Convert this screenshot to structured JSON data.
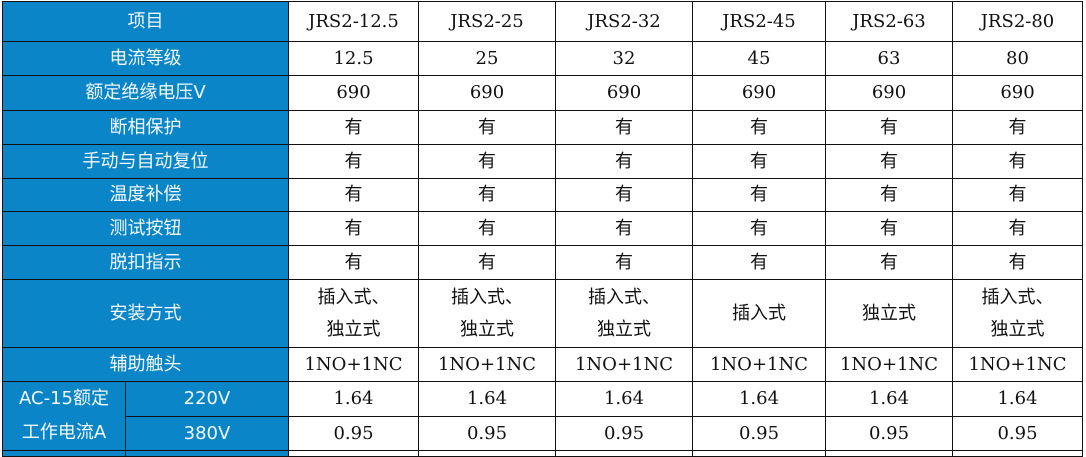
{
  "header": {
    "label": "项目",
    "models": [
      "JRS2-12.5",
      "JRS2-25",
      "JRS2-32",
      "JRS2-45",
      "JRS2-63",
      "JRS2-80"
    ]
  },
  "rows": [
    {
      "label": "电流等级",
      "values": [
        "12.5",
        "25",
        "32",
        "45",
        "63",
        "80"
      ]
    },
    {
      "label": "额定绝缘电压V",
      "values": [
        "690",
        "690",
        "690",
        "690",
        "690",
        "690"
      ]
    },
    {
      "label": "断相保护",
      "values": [
        "有",
        "有",
        "有",
        "有",
        "有",
        "有"
      ]
    },
    {
      "label": "手动与自动复位",
      "values": [
        "有",
        "有",
        "有",
        "有",
        "有",
        "有"
      ]
    },
    {
      "label": "温度补偿",
      "values": [
        "有",
        "有",
        "有",
        "有",
        "有",
        "有"
      ]
    },
    {
      "label": "测试按钮",
      "values": [
        "有",
        "有",
        "有",
        "有",
        "有",
        "有"
      ]
    },
    {
      "label": "脱扣指示",
      "values": [
        "有",
        "有",
        "有",
        "有",
        "有",
        "有"
      ]
    },
    {
      "label": "安装方式",
      "values": [
        "插入式、\n独立式",
        "插入式、\n独立式",
        "插入式、\n独立式",
        "插入式",
        "独立式",
        "插入式、\n独立式"
      ]
    },
    {
      "label": "辅助触头",
      "values": [
        "1NO+1NC",
        "1NO+1NC",
        "1NO+1NC",
        "1NO+1NC",
        "1NO+1NC",
        "1NO+1NC"
      ]
    }
  ],
  "ac15": {
    "label_line1": "AC-15额定",
    "label_line2": "工作电流A",
    "sub": [
      {
        "label": "220V",
        "values": [
          "1.64",
          "1.64",
          "1.64",
          "1.64",
          "1.64",
          "1.64"
        ]
      },
      {
        "label": "380V",
        "values": [
          "0.95",
          "0.95",
          "0.95",
          "0.95",
          "0.95",
          "0.95"
        ]
      }
    ]
  },
  "colors": {
    "header_bg": "#0a86c8",
    "header_text": "#f2f7fb"
  }
}
